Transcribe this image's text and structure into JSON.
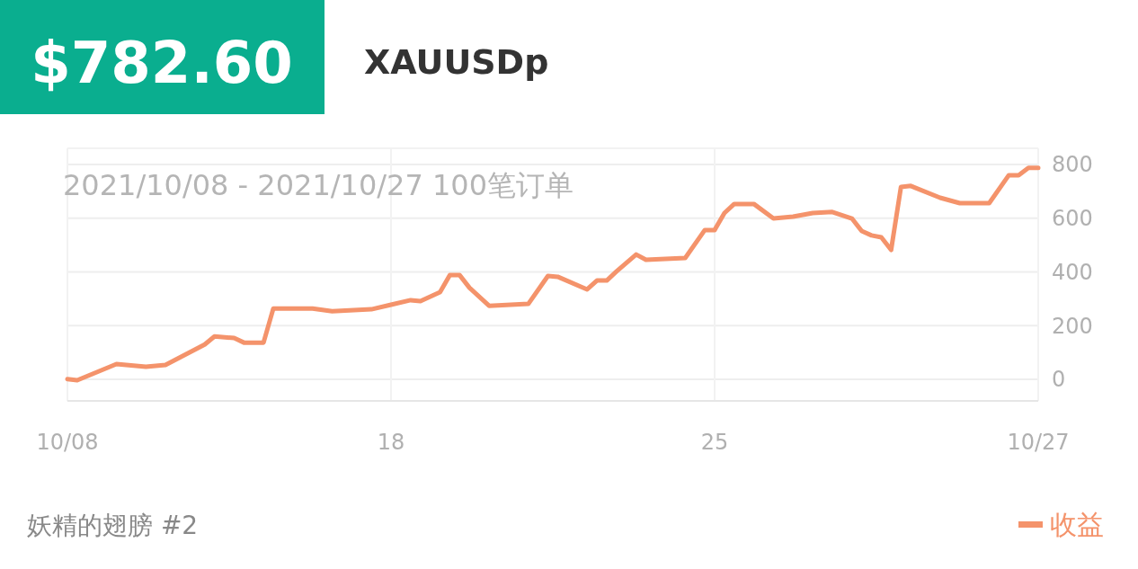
{
  "chart_data": {
    "type": "line",
    "title": "$782.60",
    "subtitle": "XAUUSDp",
    "annotations": [
      "2021/10/08 - 2021/10/27  100笔订单",
      "妖精的翅膀 #2"
    ],
    "categories": [
      "10/08",
      null,
      null,
      null,
      null,
      null,
      null,
      null,
      null,
      null,
      null,
      null,
      null,
      null,
      null,
      null,
      null,
      null,
      null,
      null,
      null,
      null,
      null,
      null,
      null,
      null,
      null,
      null,
      null,
      null,
      null,
      null,
      null,
      "18",
      null,
      null,
      null,
      null,
      null,
      null,
      null,
      null,
      null,
      null,
      null,
      null,
      null,
      null,
      null,
      null,
      null,
      null,
      null,
      null,
      null,
      null,
      null,
      null,
      null,
      null,
      null,
      null,
      null,
      null,
      null,
      null,
      "25",
      null,
      null,
      null,
      null,
      null,
      null,
      null,
      null,
      null,
      null,
      null,
      null,
      null,
      null,
      null,
      null,
      null,
      null,
      null,
      null,
      null,
      null,
      null,
      null,
      null,
      null,
      null,
      null,
      null,
      null,
      null,
      null,
      "10/27"
    ],
    "series": [
      {
        "name": "收益",
        "color": "#f4936b",
        "values": [
          1,
          -3,
          null,
          null,
          null,
          57,
          null,
          null,
          47,
          null,
          54,
          null,
          null,
          null,
          130,
          160,
          null,
          154,
          137,
          null,
          137,
          264,
          null,
          null,
          null,
          264,
          null,
          254,
          null,
          null,
          null,
          261,
          null,
          278,
          null,
          295,
          291,
          null,
          325,
          388,
          388,
          341,
          null,
          274,
          null,
          null,
          null,
          281,
          null,
          385,
          382,
          null,
          null,
          335,
          368,
          368,
          402,
          null,
          465,
          445,
          null,
          null,
          null,
          452,
          null,
          556,
          556,
          619,
          653,
          null,
          653,
          null,
          599,
          null,
          606,
          null,
          619,
          null,
          623,
          null,
          599,
          552,
          536,
          529,
          482,
          716,
          720,
          null,
          null,
          676,
          null,
          656,
          null,
          null,
          656,
          null,
          760,
          760,
          787,
          787
        ]
      }
    ],
    "ylim": [
      -80,
      860
    ],
    "yticks": [
      0,
      200,
      400,
      600,
      800
    ],
    "grid": true,
    "legend": "bottom right",
    "marker": "none",
    "line_style": "solid"
  }
}
